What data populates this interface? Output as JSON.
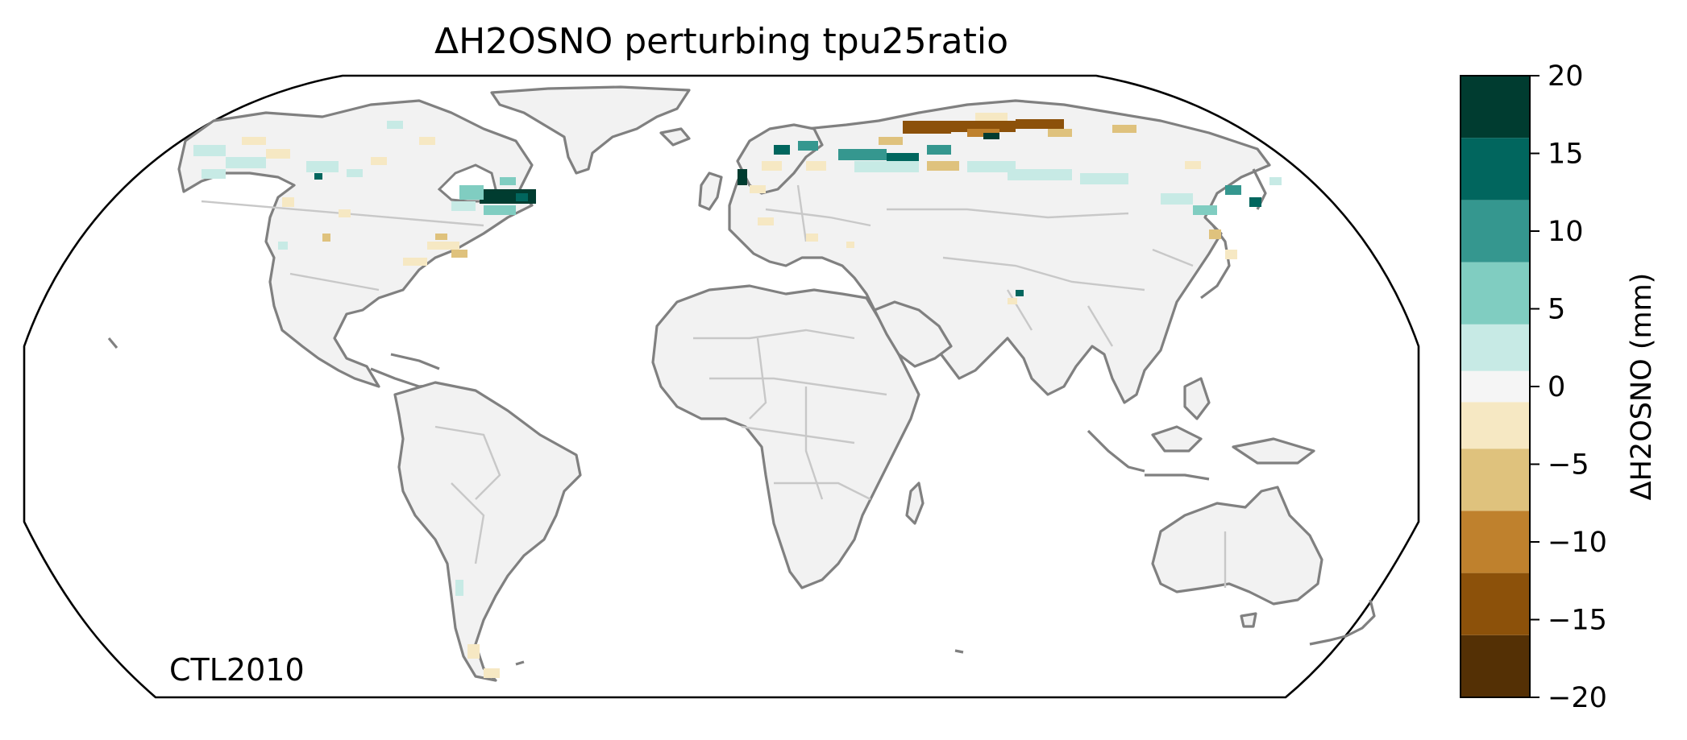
{
  "title": "ΔH2OSNO perturbing tpu25ratio",
  "annotation": "CTL2010",
  "colorbar": {
    "label": "ΔH2OSNO (mm)",
    "ticks": [
      "20",
      "15",
      "10",
      "5",
      "0",
      "−5",
      "−10",
      "−15",
      "−20"
    ],
    "tick_values": [
      20,
      15,
      10,
      5,
      0,
      -5,
      -10,
      -15,
      -20
    ],
    "bins": [
      {
        "from": -20,
        "to": -16,
        "color": "#543005"
      },
      {
        "from": -16,
        "to": -12,
        "color": "#8c510a"
      },
      {
        "from": -12,
        "to": -8,
        "color": "#bf812d"
      },
      {
        "from": -8,
        "to": -4,
        "color": "#dfc27d"
      },
      {
        "from": -4,
        "to": -1,
        "color": "#f6e8c3"
      },
      {
        "from": -1,
        "to": 1,
        "color": "#f5f5f5"
      },
      {
        "from": 1,
        "to": 4,
        "color": "#c7eae5"
      },
      {
        "from": 4,
        "to": 8,
        "color": "#80cdc1"
      },
      {
        "from": 8,
        "to": 12,
        "color": "#35978f"
      },
      {
        "from": 12,
        "to": 16,
        "color": "#01665e"
      },
      {
        "from": 16,
        "to": 20,
        "color": "#003c30"
      }
    ]
  },
  "map": {
    "projection": "Robinson",
    "land_color": "#f2f2f2",
    "coast_color": "#808080",
    "border_color": "#c8c8c8"
  }
}
